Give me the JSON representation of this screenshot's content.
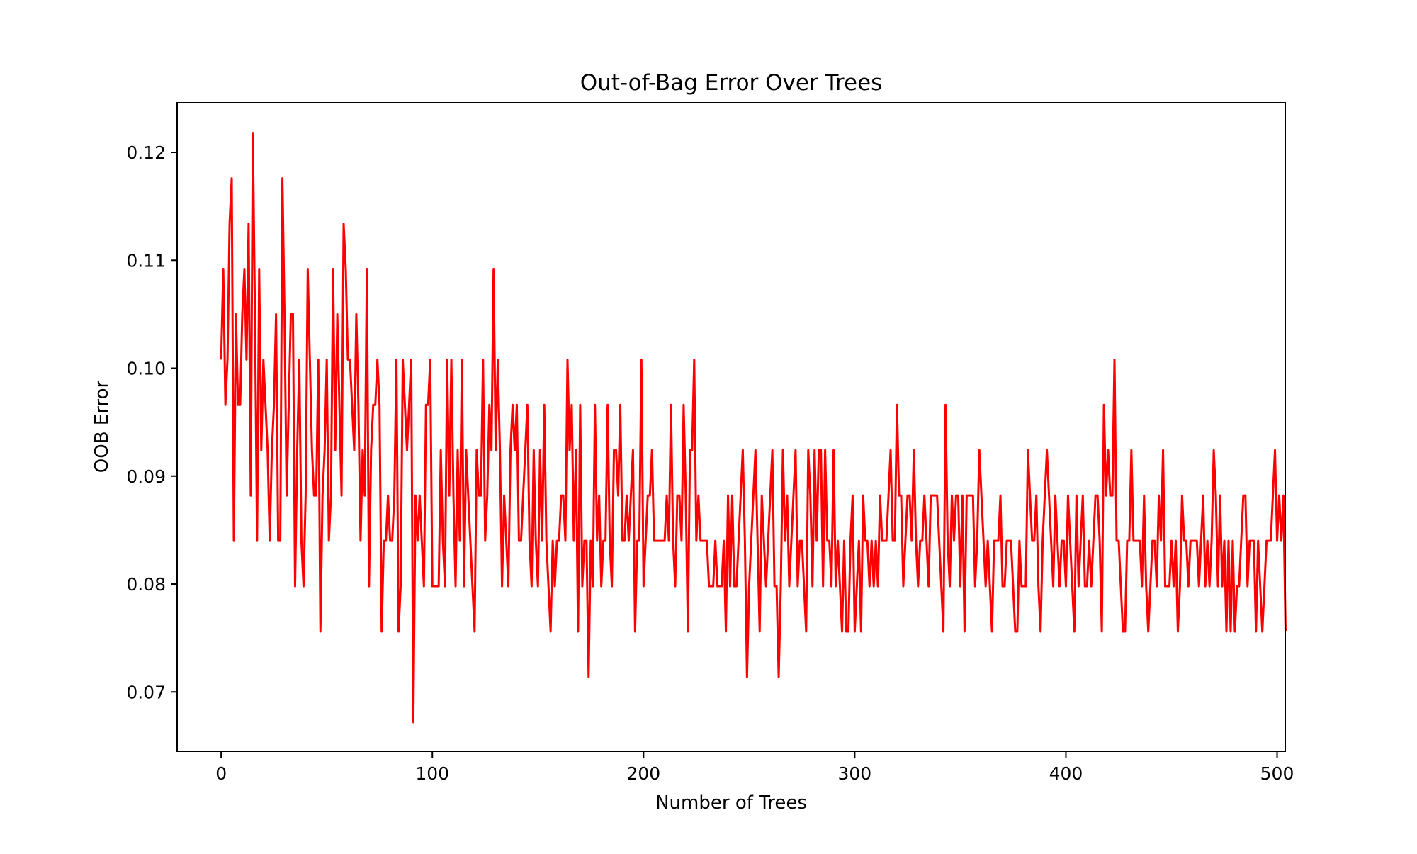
{
  "chart_data": {
    "type": "line",
    "title": "Out-of-Bag Error Over Trees",
    "xlabel": "Number of Trees",
    "ylabel": "OOB Error",
    "xlim": [
      -20.85,
      503.85
    ],
    "ylim": [
      0.0645,
      0.1246
    ],
    "xticks": [
      0,
      100,
      200,
      300,
      400,
      500
    ],
    "yticks": [
      0.07,
      0.08,
      0.09,
      0.1,
      0.11,
      0.12
    ],
    "xtick_labels": [
      "0",
      "100",
      "200",
      "300",
      "400",
      "500"
    ],
    "ytick_labels": [
      "0.07",
      "0.08",
      "0.09",
      "0.10",
      "0.11",
      "0.12"
    ],
    "grid": false,
    "legend": "none",
    "series": [
      {
        "color": "#ff0000",
        "x_start": 0,
        "x_step": 1,
        "values": [
          0.1008,
          0.1092,
          0.0966,
          0.1008,
          0.1134,
          0.1176,
          0.084,
          0.105,
          0.0966,
          0.0966,
          0.105,
          0.1092,
          0.1008,
          0.1134,
          0.0882,
          0.1218,
          0.105,
          0.084,
          0.1092,
          0.0924,
          0.1008,
          0.0966,
          0.0924,
          0.084,
          0.0924,
          0.0966,
          0.105,
          0.084,
          0.084,
          0.1176,
          0.105,
          0.0882,
          0.0966,
          0.105,
          0.105,
          0.0798,
          0.0924,
          0.1008,
          0.084,
          0.0798,
          0.0882,
          0.1092,
          0.1008,
          0.0924,
          0.0882,
          0.0882,
          0.1008,
          0.0756,
          0.0882,
          0.0924,
          0.1008,
          0.084,
          0.0882,
          0.1092,
          0.0924,
          0.105,
          0.0966,
          0.0882,
          0.1134,
          0.1092,
          0.1008,
          0.1008,
          0.0966,
          0.0924,
          0.105,
          0.0966,
          0.084,
          0.0924,
          0.0882,
          0.1092,
          0.0798,
          0.0924,
          0.0966,
          0.0966,
          0.1008,
          0.0966,
          0.0756,
          0.084,
          0.084,
          0.0882,
          0.084,
          0.084,
          0.0882,
          0.1008,
          0.0756,
          0.0798,
          0.1008,
          0.0966,
          0.0924,
          0.0966,
          0.1008,
          0.0672,
          0.0882,
          0.084,
          0.0882,
          0.084,
          0.0798,
          0.0966,
          0.0966,
          0.1008,
          0.0798,
          0.0798,
          0.0798,
          0.0798,
          0.0924,
          0.084,
          0.0798,
          0.1008,
          0.0882,
          0.1008,
          0.0882,
          0.0798,
          0.0924,
          0.084,
          0.1008,
          0.0798,
          0.0924,
          0.0882,
          0.084,
          0.0798,
          0.0756,
          0.0924,
          0.0882,
          0.0882,
          0.1008,
          0.084,
          0.0882,
          0.0966,
          0.0924,
          0.1092,
          0.0924,
          0.1008,
          0.0924,
          0.0798,
          0.0882,
          0.084,
          0.0798,
          0.0924,
          0.0966,
          0.0924,
          0.0966,
          0.084,
          0.084,
          0.0882,
          0.0924,
          0.0966,
          0.084,
          0.0798,
          0.0924,
          0.084,
          0.0798,
          0.0924,
          0.084,
          0.0966,
          0.084,
          0.0798,
          0.0756,
          0.084,
          0.0798,
          0.084,
          0.084,
          0.0882,
          0.0882,
          0.084,
          0.1008,
          0.0924,
          0.0966,
          0.084,
          0.0924,
          0.0756,
          0.0966,
          0.0798,
          0.084,
          0.084,
          0.0714,
          0.084,
          0.0798,
          0.0966,
          0.084,
          0.0882,
          0.0798,
          0.084,
          0.084,
          0.0966,
          0.084,
          0.0798,
          0.0924,
          0.0924,
          0.0882,
          0.0966,
          0.084,
          0.084,
          0.0882,
          0.084,
          0.0882,
          0.0924,
          0.0756,
          0.084,
          0.084,
          0.1008,
          0.0798,
          0.084,
          0.0882,
          0.0882,
          0.0924,
          0.084,
          0.084,
          0.084,
          0.084,
          0.084,
          0.084,
          0.0882,
          0.084,
          0.0966,
          0.084,
          0.0798,
          0.0882,
          0.0882,
          0.084,
          0.0966,
          0.0882,
          0.0756,
          0.0924,
          0.0924,
          0.1008,
          0.084,
          0.0882,
          0.084,
          0.084,
          0.084,
          0.084,
          0.0798,
          0.0798,
          0.0798,
          0.084,
          0.0798,
          0.0798,
          0.0798,
          0.084,
          0.0756,
          0.0882,
          0.0798,
          0.0882,
          0.0798,
          0.0798,
          0.084,
          0.0882,
          0.0924,
          0.084,
          0.0714,
          0.0798,
          0.084,
          0.0882,
          0.0924,
          0.084,
          0.0756,
          0.0882,
          0.084,
          0.0798,
          0.084,
          0.0882,
          0.0924,
          0.0798,
          0.0798,
          0.0714,
          0.0798,
          0.0924,
          0.084,
          0.0882,
          0.0798,
          0.084,
          0.0882,
          0.0924,
          0.0798,
          0.084,
          0.084,
          0.0798,
          0.0756,
          0.0924,
          0.0882,
          0.0798,
          0.0924,
          0.084,
          0.0924,
          0.0924,
          0.0798,
          0.0924,
          0.084,
          0.084,
          0.0798,
          0.0924,
          0.0798,
          0.084,
          0.0798,
          0.0756,
          0.084,
          0.0756,
          0.0756,
          0.084,
          0.0882,
          0.0756,
          0.0798,
          0.084,
          0.0756,
          0.0882,
          0.084,
          0.084,
          0.0798,
          0.084,
          0.0798,
          0.084,
          0.0798,
          0.0882,
          0.084,
          0.084,
          0.084,
          0.0882,
          0.0924,
          0.084,
          0.084,
          0.0966,
          0.0882,
          0.0882,
          0.0798,
          0.084,
          0.0882,
          0.0882,
          0.084,
          0.0924,
          0.084,
          0.0798,
          0.084,
          0.084,
          0.0882,
          0.084,
          0.0798,
          0.0882,
          0.0882,
          0.0882,
          0.0882,
          0.084,
          0.0798,
          0.0756,
          0.0966,
          0.084,
          0.0798,
          0.0882,
          0.084,
          0.0882,
          0.0882,
          0.0798,
          0.0882,
          0.0756,
          0.0882,
          0.0882,
          0.0882,
          0.0882,
          0.0798,
          0.084,
          0.0924,
          0.0882,
          0.084,
          0.0798,
          0.084,
          0.0798,
          0.0756,
          0.084,
          0.084,
          0.084,
          0.0882,
          0.0798,
          0.0798,
          0.084,
          0.084,
          0.084,
          0.0798,
          0.0756,
          0.0756,
          0.084,
          0.0798,
          0.0798,
          0.0798,
          0.0924,
          0.0882,
          0.084,
          0.084,
          0.0882,
          0.0798,
          0.0756,
          0.084,
          0.0882,
          0.0924,
          0.0882,
          0.084,
          0.0798,
          0.0882,
          0.084,
          0.0798,
          0.084,
          0.084,
          0.0798,
          0.0882,
          0.084,
          0.0798,
          0.0756,
          0.0882,
          0.0798,
          0.084,
          0.0882,
          0.0798,
          0.0798,
          0.084,
          0.0798,
          0.084,
          0.0882,
          0.0882,
          0.084,
          0.0756,
          0.0966,
          0.0882,
          0.0924,
          0.0882,
          0.0882,
          0.1008,
          0.084,
          0.084,
          0.0798,
          0.0756,
          0.0756,
          0.084,
          0.084,
          0.0924,
          0.084,
          0.084,
          0.084,
          0.084,
          0.0798,
          0.0882,
          0.0798,
          0.0756,
          0.0798,
          0.084,
          0.084,
          0.0798,
          0.0882,
          0.084,
          0.0924,
          0.0798,
          0.0798,
          0.0798,
          0.084,
          0.0798,
          0.084,
          0.0756,
          0.0798,
          0.0882,
          0.084,
          0.084,
          0.0798,
          0.084,
          0.084,
          0.084,
          0.084,
          0.0798,
          0.084,
          0.0882,
          0.0798,
          0.084,
          0.0798,
          0.084,
          0.0924,
          0.0882,
          0.0798,
          0.0882,
          0.0798,
          0.084,
          0.0756,
          0.084,
          0.0756,
          0.084,
          0.0756,
          0.0798,
          0.0798,
          0.084,
          0.0882,
          0.0882,
          0.0798,
          0.084,
          0.084,
          0.084,
          0.0756,
          0.084,
          0.0798,
          0.0756,
          0.0798,
          0.084,
          0.084,
          0.084,
          0.0882,
          0.0924,
          0.084,
          0.0882,
          0.084,
          0.0882,
          0.0756
        ]
      }
    ]
  }
}
